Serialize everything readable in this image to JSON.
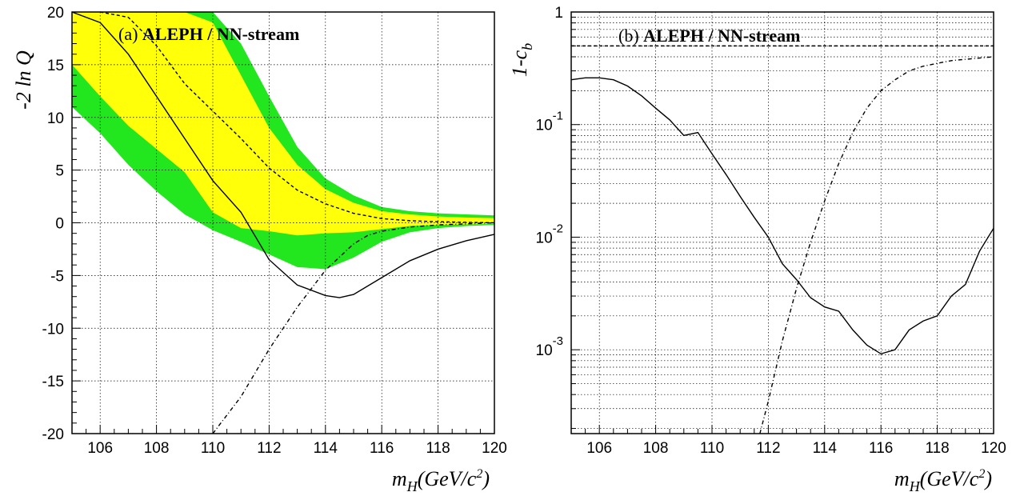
{
  "chart_data": [
    {
      "type": "line",
      "panel_label": "(a)",
      "title_bold": "ALEPH / NN-stream",
      "ylabel": "-2 ln Q",
      "xlabel_main": "m",
      "xlabel_sub": "H",
      "xlabel_unit": "(GeV/c",
      "xlabel_sup": "2",
      "xlabel_close": ")",
      "xlim": [
        105,
        120
      ],
      "ylim": [
        -20,
        20
      ],
      "grid": true,
      "x_ticks": [
        106,
        108,
        110,
        112,
        114,
        116,
        118,
        120
      ],
      "y_ticks": [
        -20,
        -15,
        -10,
        -5,
        0,
        5,
        10,
        15,
        20
      ],
      "colors": {
        "band_2sigma": "#22e61e",
        "band_1sigma": "#ffff0a"
      },
      "bands": {
        "x": [
          105,
          106,
          107,
          108,
          109,
          110,
          111,
          112,
          113,
          114,
          115,
          116,
          117,
          118,
          119,
          120
        ],
        "outer_upper": [
          20,
          20,
          20,
          20,
          20,
          20,
          17,
          12,
          7.2,
          4.2,
          2.6,
          1.5,
          1.1,
          0.9,
          0.8,
          0.7
        ],
        "inner_upper": [
          20,
          20,
          20,
          20,
          20,
          19,
          14,
          9,
          5.5,
          3.2,
          1.9,
          1.1,
          0.8,
          0.6,
          0.5,
          0.45
        ],
        "inner_lower": [
          15,
          12,
          9.2,
          7,
          4.8,
          1,
          -0.5,
          -0.8,
          -1.2,
          -1.0,
          -0.9,
          -0.6,
          -0.3,
          -0.2,
          -0.15,
          -0.1
        ],
        "outer_lower": [
          11,
          8.5,
          5.5,
          3,
          0.8,
          -0.7,
          -1.8,
          -3,
          -4.2,
          -4.4,
          -3.3,
          -1.8,
          -0.9,
          -0.5,
          -0.3,
          -0.2
        ]
      },
      "series": [
        {
          "style": "solid",
          "x": [
            105,
            106,
            107,
            108,
            109,
            110,
            111,
            112,
            113,
            114,
            114.5,
            115,
            116,
            117,
            118,
            119,
            120
          ],
          "values": [
            22,
            19,
            16,
            12,
            8,
            4,
            1,
            -3.5,
            -5.9,
            -6.9,
            -7.1,
            -6.8,
            -5.2,
            -3.6,
            -2.5,
            -1.7,
            -1.1
          ]
        },
        {
          "style": "dashed",
          "x": [
            106,
            107,
            108,
            109,
            110,
            111,
            112,
            113,
            114,
            115,
            116,
            117,
            118,
            119,
            120
          ],
          "values": [
            22,
            19.5,
            16.8,
            13.2,
            10.6,
            8,
            5.2,
            3.1,
            1.8,
            0.9,
            0.4,
            0.2,
            0.1,
            0.05,
            0.0
          ]
        },
        {
          "style": "dashdot",
          "x": [
            110,
            111,
            112,
            113,
            114,
            115,
            115.5,
            116,
            117,
            118,
            119,
            120
          ],
          "values": [
            -20,
            -16.5,
            -12,
            -8,
            -4.5,
            -2,
            -1.2,
            -0.8,
            -0.4,
            -0.2,
            -0.1,
            0.0
          ]
        }
      ]
    },
    {
      "type": "line",
      "panel_label": "(b)",
      "title_bold": "ALEPH / NN-stream",
      "ylabel_main": "1-c",
      "ylabel_sub": "b",
      "xlabel_main": "m",
      "xlabel_sub": "H",
      "xlabel_unit": "(GeV/c",
      "xlabel_sup": "2",
      "xlabel_close": ")",
      "xlim": [
        105,
        120
      ],
      "ylim": [
        0.00018,
        1
      ],
      "yscale": "log",
      "grid": true,
      "x_ticks": [
        106,
        108,
        110,
        112,
        114,
        116,
        118,
        120
      ],
      "y_tick_labels": [
        {
          "value": 1,
          "base": "1",
          "exp": ""
        },
        {
          "value": 0.1,
          "base": "10",
          "exp": "-1"
        },
        {
          "value": 0.01,
          "base": "10",
          "exp": "-2"
        },
        {
          "value": 0.001,
          "base": "10",
          "exp": "-3"
        }
      ],
      "reference_line": {
        "style": "dashed",
        "value": 0.5
      },
      "series": [
        {
          "style": "solid",
          "x": [
            105,
            105.5,
            106,
            106.5,
            107,
            107.5,
            108,
            108.5,
            109,
            109.5,
            110,
            110.5,
            111,
            111.5,
            112,
            112.5,
            113,
            113.5,
            114,
            114.5,
            115,
            115.5,
            116,
            116.5,
            117,
            117.5,
            118,
            118.5,
            119,
            119.5,
            120
          ],
          "values": [
            0.25,
            0.26,
            0.26,
            0.25,
            0.22,
            0.18,
            0.14,
            0.11,
            0.08,
            0.085,
            0.055,
            0.036,
            0.023,
            0.015,
            0.01,
            0.0058,
            0.0042,
            0.0029,
            0.0024,
            0.0022,
            0.0015,
            0.0011,
            0.00092,
            0.001,
            0.0015,
            0.0018,
            0.002,
            0.003,
            0.0038,
            0.0075,
            0.012
          ]
        },
        {
          "style": "dashdot",
          "x": [
            111.7,
            112,
            112.5,
            113,
            113.5,
            114,
            114.5,
            115,
            115.5,
            116,
            116.5,
            117,
            117.5,
            118,
            118.5,
            119,
            119.5,
            120
          ],
          "values": [
            0.00018,
            0.00035,
            0.0012,
            0.0035,
            0.009,
            0.021,
            0.045,
            0.085,
            0.14,
            0.2,
            0.25,
            0.3,
            0.33,
            0.35,
            0.37,
            0.38,
            0.39,
            0.4
          ]
        }
      ]
    }
  ]
}
